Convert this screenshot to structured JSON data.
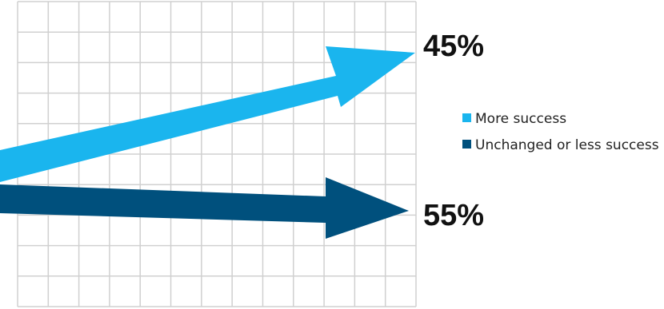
{
  "chart_data": {
    "type": "bar",
    "categories": [
      "More success",
      "Unchanged or less success"
    ],
    "values": [
      45,
      55
    ],
    "unit": "%",
    "data_labels": [
      "45%",
      "55%"
    ],
    "legend": {
      "position": "right",
      "entries": [
        {
          "label": "More success",
          "color": "#1ab5ee"
        },
        {
          "label": "Unchanged or less success",
          "color": "#00507d"
        }
      ]
    },
    "grid": true,
    "colors": {
      "more_success": "#1ab5ee",
      "unchanged": "#00507d",
      "grid": "#d0d0d0"
    }
  }
}
